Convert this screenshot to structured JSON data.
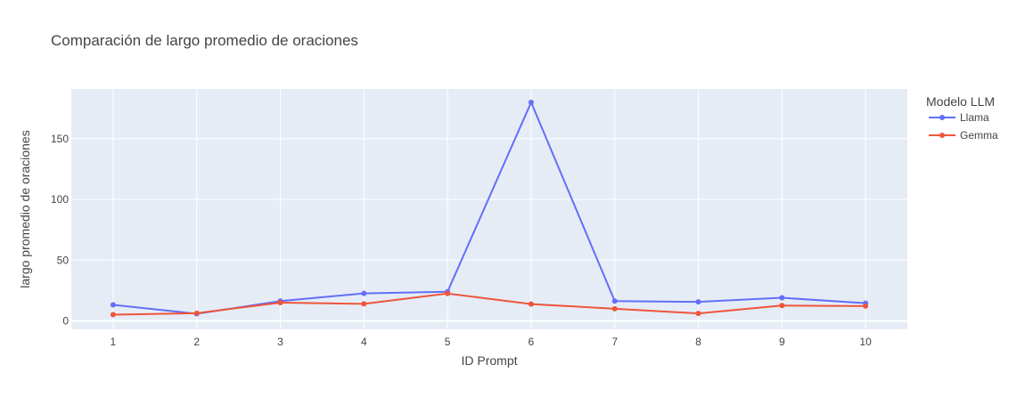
{
  "chart_data": {
    "type": "line",
    "title": "Comparación de largo promedio de oraciones",
    "xlabel": "ID Prompt",
    "ylabel": "largo promedio de oraciones",
    "x": [
      1,
      2,
      3,
      4,
      5,
      6,
      7,
      8,
      9,
      10
    ],
    "x_ticks": [
      "1",
      "2",
      "3",
      "4",
      "5",
      "6",
      "7",
      "8",
      "9",
      "10"
    ],
    "xlim": [
      0.5,
      10.5
    ],
    "ylim": [
      -7,
      191
    ],
    "y_ticks": [
      0,
      50,
      100,
      150
    ],
    "y_tick_labels": [
      "0",
      "50",
      "100",
      "150"
    ],
    "grid": true,
    "plot_background": "#e5ecf6",
    "legend": {
      "title": "Modelo LLM",
      "placement": "top-right"
    },
    "series": [
      {
        "name": "Llama",
        "color": "#636efa",
        "values": [
          13.2,
          5.8,
          16.3,
          22.6,
          24.0,
          180.0,
          16.3,
          15.6,
          19.0,
          14.5
        ]
      },
      {
        "name": "Gemma",
        "color": "#ef553b",
        "values": [
          5.1,
          6.3,
          15.0,
          14.0,
          22.5,
          13.8,
          10.0,
          6.1,
          12.6,
          12.2
        ]
      }
    ]
  }
}
